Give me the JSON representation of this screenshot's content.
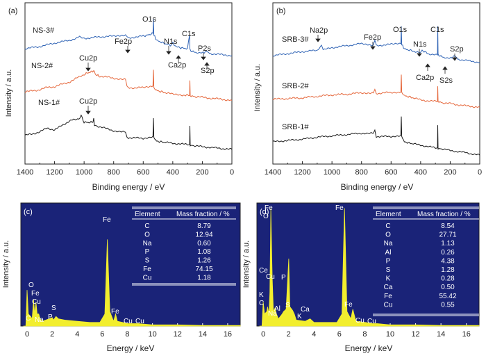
{
  "chart_data": [
    {
      "panel": "(a)",
      "type": "line",
      "xlabel": "Binding energy / eV",
      "ylabel": "Intensity / a.u.",
      "xlim": [
        1400,
        0
      ],
      "x_ticks": [
        1400,
        1200,
        1000,
        800,
        600,
        400,
        200,
        0
      ],
      "series": [
        {
          "name": "NS-3#",
          "color": "#2f63b5",
          "x": [
            1400,
            1300,
            1200,
            1100,
            1050,
            1030,
            1000,
            950,
            900,
            800,
            720,
            700,
            650,
            600,
            560,
            534,
            531,
            528,
            510,
            450,
            410,
            400,
            390,
            360,
            340,
            300,
            286,
            284,
            282,
            250,
            200,
            168,
            150,
            100,
            50,
            0
          ],
          "y": [
            0.16,
            0.22,
            0.32,
            0.4,
            0.46,
            0.52,
            0.46,
            0.47,
            0.5,
            0.52,
            0.56,
            0.46,
            0.5,
            0.52,
            0.56,
            0.6,
            1.0,
            0.56,
            0.4,
            0.3,
            0.26,
            0.32,
            0.24,
            0.2,
            0.18,
            0.16,
            0.56,
            0.16,
            0.1,
            0.06,
            0.04,
            0.08,
            0.02,
            0.0,
            -0.02,
            -0.04
          ]
        },
        {
          "name": "NS-2#",
          "color": "#e5663a",
          "x": [
            1400,
            1300,
            1250,
            1200,
            1100,
            1000,
            960,
            935,
            930,
            925,
            900,
            800,
            720,
            710,
            700,
            650,
            600,
            534,
            531,
            528,
            510,
            450,
            400,
            320,
            300,
            286,
            284,
            282,
            250,
            200,
            100,
            0
          ],
          "y": [
            0.14,
            0.2,
            0.26,
            0.28,
            0.4,
            0.6,
            0.66,
            0.7,
            0.68,
            0.6,
            0.56,
            0.5,
            0.48,
            0.28,
            0.26,
            0.24,
            0.26,
            0.3,
            0.72,
            0.24,
            0.18,
            0.12,
            0.08,
            0.06,
            0.05,
            0.05,
            0.44,
            0.04,
            0.02,
            0.0,
            -0.04,
            -0.08
          ]
        },
        {
          "name": "NS-1#",
          "color": "#1a1a1a",
          "x": [
            1400,
            1300,
            1250,
            1200,
            1100,
            1030,
            1020,
            1000,
            940,
            935,
            930,
            900,
            800,
            720,
            710,
            700,
            600,
            534,
            531,
            528,
            510,
            450,
            400,
            300,
            286,
            284,
            282,
            250,
            200,
            100,
            0
          ],
          "y": [
            0.1,
            0.2,
            0.32,
            0.26,
            0.52,
            0.6,
            0.68,
            0.48,
            0.48,
            0.6,
            0.4,
            0.36,
            0.24,
            0.2,
            0.06,
            0.04,
            0.02,
            0.08,
            0.6,
            0.04,
            -0.06,
            -0.1,
            -0.12,
            -0.16,
            -0.16,
            0.38,
            -0.18,
            -0.2,
            -0.22,
            -0.26,
            -0.3
          ]
        }
      ],
      "annotations": [
        "O1s",
        "Fe2p",
        "N1s",
        "C1s",
        "Ca2p",
        "P2s",
        "S2p",
        "Cu2p",
        "Cu2p"
      ]
    },
    {
      "panel": "(b)",
      "type": "line",
      "xlabel": "Binding energy / eV",
      "ylabel": "Intensity / a.u.",
      "xlim": [
        1400,
        0
      ],
      "x_ticks": [
        1400,
        1200,
        1000,
        800,
        600,
        400,
        200,
        0
      ],
      "series": [
        {
          "name": "SRB-3#",
          "color": "#2f63b5",
          "x": [
            1400,
            1300,
            1200,
            1100,
            1071,
            1060,
            1050,
            1000,
            900,
            800,
            720,
            710,
            700,
            650,
            600,
            534,
            531,
            528,
            510,
            450,
            400,
            390,
            350,
            300,
            286,
            284,
            282,
            250,
            200,
            168,
            150,
            100,
            0
          ],
          "y": [
            0.04,
            0.1,
            0.16,
            0.2,
            0.36,
            0.22,
            0.22,
            0.28,
            0.34,
            0.4,
            0.36,
            0.48,
            0.34,
            0.36,
            0.38,
            0.4,
            0.92,
            0.38,
            0.24,
            0.18,
            0.12,
            0.2,
            0.1,
            0.06,
            0.06,
            0.92,
            0.06,
            0.0,
            -0.04,
            0.04,
            -0.06,
            -0.1,
            -0.16
          ]
        },
        {
          "name": "SRB-2#",
          "color": "#e5663a",
          "x": [
            1400,
            1300,
            1200,
            1100,
            1000,
            900,
            800,
            720,
            710,
            700,
            650,
            600,
            534,
            531,
            528,
            510,
            450,
            400,
            350,
            300,
            286,
            284,
            282,
            250,
            200,
            100,
            0
          ],
          "y": [
            0.1,
            0.12,
            0.14,
            0.18,
            0.22,
            0.24,
            0.28,
            0.28,
            0.36,
            0.26,
            0.28,
            0.28,
            0.3,
            0.78,
            0.28,
            0.2,
            0.14,
            0.08,
            0.06,
            0.04,
            0.04,
            0.46,
            0.04,
            0.0,
            -0.02,
            -0.08,
            -0.12
          ]
        },
        {
          "name": "SRB-1#",
          "color": "#1a1a1a",
          "x": [
            1400,
            1300,
            1200,
            1100,
            1000,
            900,
            800,
            720,
            710,
            700,
            650,
            600,
            534,
            531,
            528,
            510,
            450,
            400,
            350,
            300,
            286,
            284,
            282,
            250,
            200,
            100,
            0
          ],
          "y": [
            0.04,
            0.08,
            0.12,
            0.18,
            0.22,
            0.26,
            0.3,
            0.3,
            0.4,
            0.2,
            0.2,
            0.2,
            0.24,
            0.8,
            0.2,
            0.04,
            -0.02,
            -0.06,
            -0.1,
            -0.14,
            -0.14,
            0.54,
            -0.16,
            -0.18,
            -0.22,
            -0.28,
            -0.36
          ]
        }
      ],
      "annotations": [
        "Na2p",
        "Fe2p",
        "O1s",
        "N1s",
        "C1s",
        "Ca2p",
        "S2s",
        "S2p"
      ]
    },
    {
      "panel": "(c)",
      "type": "line",
      "xlabel": "Energy / keV",
      "ylabel": "Intensity / a.u.",
      "xlim": [
        -0.5,
        17
      ],
      "x_ticks": [
        0,
        2,
        4,
        6,
        8,
        10,
        12,
        14,
        16
      ],
      "series": [
        {
          "name": "EDS spectrum",
          "color": "#f2ee2e",
          "x": [
            -0.3,
            -0.1,
            0.0,
            0.1,
            0.28,
            0.4,
            0.52,
            0.6,
            0.71,
            0.8,
            0.93,
            1.04,
            1.2,
            1.5,
            1.75,
            2.01,
            2.1,
            2.31,
            2.5,
            3.0,
            4.0,
            5.0,
            5.8,
            6.2,
            6.4,
            6.6,
            6.9,
            7.06,
            7.2,
            8.05,
            8.5,
            8.9,
            10,
            12,
            14,
            17
          ],
          "y": [
            0,
            0,
            0.3,
            0.1,
            0.08,
            0.06,
            0.22,
            0.1,
            0.2,
            0.1,
            0.1,
            0.06,
            0.04,
            0.05,
            0.06,
            0.07,
            0.05,
            0.08,
            0.06,
            0.05,
            0.04,
            0.03,
            0.03,
            0.1,
            0.72,
            0.12,
            0.04,
            0.1,
            0.04,
            0.02,
            0.02,
            0.02,
            0.01,
            0.01,
            0.005,
            0.005
          ]
        }
      ],
      "peak_labels": [
        "C",
        "O",
        "Fe",
        "Cu",
        "Na",
        "P",
        "S",
        "Fe",
        "Fe",
        "Cu",
        "Cu"
      ],
      "table": {
        "headers": [
          "Element",
          "Mass fraction / %"
        ],
        "rows": [
          [
            "C",
            "8.79"
          ],
          [
            "O",
            "12.94"
          ],
          [
            "Na",
            "0.60"
          ],
          [
            "P",
            "1.08"
          ],
          [
            "S",
            "1.26"
          ],
          [
            "Fe",
            "74.15"
          ],
          [
            "Cu",
            "1.18"
          ]
        ]
      }
    },
    {
      "panel": "(d)",
      "type": "line",
      "xlabel": "Energy / keV",
      "ylabel": "Intensity / a.u.",
      "xlim": [
        -0.5,
        17
      ],
      "x_ticks": [
        0,
        2,
        4,
        6,
        8,
        10,
        12,
        14,
        16
      ],
      "series": [
        {
          "name": "EDS spectrum",
          "color": "#f2ee2e",
          "x": [
            -0.3,
            -0.1,
            0.0,
            0.1,
            0.28,
            0.34,
            0.45,
            0.52,
            0.6,
            0.71,
            0.8,
            0.93,
            1.04,
            1.2,
            1.49,
            1.6,
            1.8,
            2.01,
            2.1,
            2.31,
            2.45,
            2.6,
            3.31,
            3.69,
            4.0,
            5.0,
            5.8,
            6.2,
            6.4,
            6.6,
            6.9,
            7.06,
            7.3,
            8.05,
            8.6,
            9,
            10,
            12,
            14,
            17
          ],
          "y": [
            0,
            0,
            0.2,
            0.1,
            0.12,
            0.16,
            0.1,
            0.28,
            0.98,
            0.4,
            0.12,
            0.15,
            0.1,
            0.06,
            0.1,
            0.12,
            0.14,
            0.56,
            0.16,
            0.13,
            0.1,
            0.05,
            0.04,
            0.06,
            0.03,
            0.03,
            0.03,
            0.1,
            0.98,
            0.12,
            0.06,
            0.14,
            0.04,
            0.03,
            0.02,
            0.02,
            0.01,
            0.01,
            0.005,
            0.005
          ]
        }
      ],
      "peak_labels": [
        "Fe",
        "O",
        "Ce",
        "Cu",
        "K",
        "C",
        "Na",
        "Al",
        "P",
        "S",
        "Ca",
        "K",
        "Fe",
        "Fe",
        "Cu",
        "Cu"
      ],
      "table": {
        "headers": [
          "Element",
          "Mass fraction / %"
        ],
        "rows": [
          [
            "C",
            "8.54"
          ],
          [
            "O",
            "27.71"
          ],
          [
            "Na",
            "1.13"
          ],
          [
            "Al",
            "0.26"
          ],
          [
            "P",
            "4.38"
          ],
          [
            "S",
            "1.28"
          ],
          [
            "K",
            "0.28"
          ],
          [
            "Ca",
            "0.50"
          ],
          [
            "Fe",
            "55.42"
          ],
          [
            "Cu",
            "0.55"
          ]
        ]
      }
    }
  ],
  "colors": {
    "sem_background": "#1a2378",
    "spectrum": "#f2ee2e",
    "axis": "#222222"
  }
}
